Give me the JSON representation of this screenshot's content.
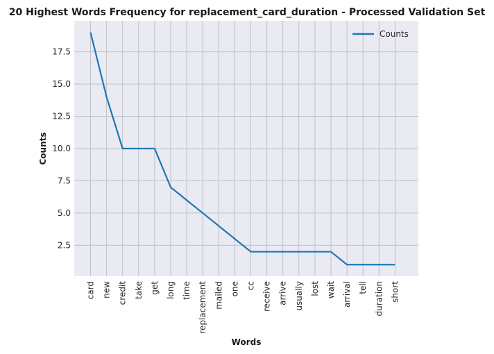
{
  "chart_data": {
    "type": "line",
    "title": "20 Highest Words Frequency for replacement_card_duration - Processed Validation Set",
    "xlabel": "Words",
    "ylabel": "Counts",
    "categories": [
      "card",
      "new",
      "credit",
      "take",
      "get",
      "long",
      "time",
      "replacement",
      "mailed",
      "one",
      "cc",
      "receive",
      "arrive",
      "usually",
      "lost",
      "wait",
      "arrival",
      "tell",
      "duration",
      "short"
    ],
    "series": [
      {
        "name": "Counts",
        "values": [
          19,
          14,
          10,
          10,
          10,
          7,
          6,
          5,
          4,
          3,
          2,
          2,
          2,
          2,
          2,
          2,
          1,
          1,
          1,
          1
        ],
        "color": "#1f77b4"
      }
    ],
    "ylim": [
      0.1,
      19.9
    ],
    "yticks": [
      "2.5",
      "5.0",
      "7.5",
      "10.0",
      "12.5",
      "15.0",
      "17.5"
    ],
    "grid": true,
    "legend_position": "top-right",
    "background": "#eaeaf2",
    "grid_color": "#c0c0c8"
  }
}
